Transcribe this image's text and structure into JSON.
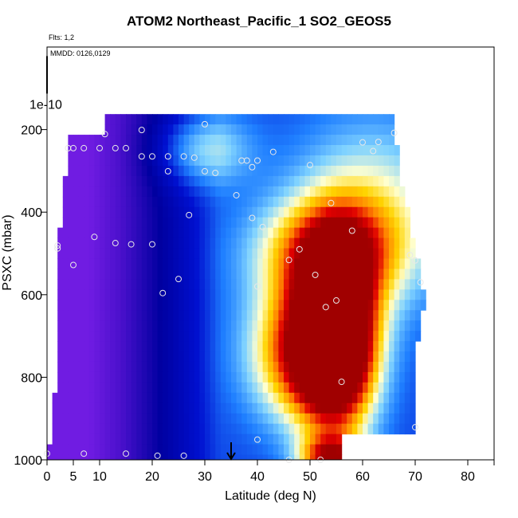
{
  "title": "ATOM2 Northeast_Pacific_1 SO2_GEOS5",
  "flights_text": "Flts: 1,2",
  "mmdd_text": "MMDD: 0126,0129",
  "chart_data": {
    "type": "heatmap",
    "xlabel": "Latitude (deg N)",
    "ylabel": "PSXC (mbar)",
    "xlim": [
      0,
      85
    ],
    "ylim": [
      1000,
      0
    ],
    "xticks": [
      0,
      5,
      10,
      20,
      30,
      40,
      50,
      60,
      70,
      80
    ],
    "xticks_minor": [
      85
    ],
    "yticks": [
      200,
      400,
      600,
      800,
      1000
    ],
    "extra_ytick_label": "1e-10",
    "extra_ytick_value": 22,
    "colormap": [
      "#7a1fe8",
      "#4a10cc",
      "#0000a0",
      "#0010d0",
      "#1f7fff",
      "#7fd2ff",
      "#ffffd0",
      "#ffd400",
      "#ff8000",
      "#e00000",
      "#a00000"
    ],
    "value_range": [
      0,
      1
    ],
    "row_pressures": [
      175,
      200,
      225,
      250,
      275,
      300,
      325,
      350,
      375,
      400,
      425,
      450,
      475,
      500,
      525,
      550,
      575,
      600,
      625,
      650,
      675,
      700,
      725,
      750,
      775,
      800,
      825,
      850,
      875,
      900,
      925,
      950,
      975,
      1000
    ],
    "row_lat_extent": [
      [
        11,
        66
      ],
      [
        11,
        66
      ],
      [
        4,
        66
      ],
      [
        4,
        67
      ],
      [
        4,
        67
      ],
      [
        4,
        67
      ],
      [
        3,
        67
      ],
      [
        3,
        68
      ],
      [
        3,
        68
      ],
      [
        3,
        69
      ],
      [
        3,
        69
      ],
      [
        2,
        69
      ],
      [
        2,
        70
      ],
      [
        2,
        70
      ],
      [
        2,
        71
      ],
      [
        2,
        71
      ],
      [
        2,
        71
      ],
      [
        2,
        72
      ],
      [
        2,
        72
      ],
      [
        2,
        71
      ],
      [
        2,
        71
      ],
      [
        2,
        71
      ],
      [
        2,
        70
      ],
      [
        2,
        70
      ],
      [
        2,
        70
      ],
      [
        2,
        70
      ],
      [
        2,
        70
      ],
      [
        1,
        70
      ],
      [
        1,
        70
      ],
      [
        1,
        70
      ],
      [
        1,
        70
      ],
      [
        1,
        56
      ],
      [
        0,
        56
      ],
      [
        0,
        56
      ]
    ],
    "overlay_points": [
      {
        "lat": 11,
        "p": 211
      },
      {
        "lat": 18,
        "p": 201
      },
      {
        "lat": 30,
        "p": 187
      },
      {
        "lat": 66,
        "p": 208
      },
      {
        "lat": 4,
        "p": 245
      },
      {
        "lat": 5,
        "p": 245
      },
      {
        "lat": 7,
        "p": 245
      },
      {
        "lat": 10,
        "p": 245
      },
      {
        "lat": 13,
        "p": 245
      },
      {
        "lat": 15,
        "p": 245
      },
      {
        "lat": 18,
        "p": 265
      },
      {
        "lat": 20,
        "p": 265
      },
      {
        "lat": 23,
        "p": 265
      },
      {
        "lat": 26,
        "p": 265
      },
      {
        "lat": 28,
        "p": 268
      },
      {
        "lat": 23,
        "p": 301
      },
      {
        "lat": 30,
        "p": 301
      },
      {
        "lat": 32,
        "p": 305
      },
      {
        "lat": 37,
        "p": 275
      },
      {
        "lat": 38,
        "p": 275
      },
      {
        "lat": 40,
        "p": 275
      },
      {
        "lat": 39,
        "p": 291
      },
      {
        "lat": 43,
        "p": 254
      },
      {
        "lat": 50,
        "p": 286
      },
      {
        "lat": 60,
        "p": 231
      },
      {
        "lat": 62,
        "p": 252
      },
      {
        "lat": 63,
        "p": 230
      },
      {
        "lat": 36,
        "p": 359
      },
      {
        "lat": 54,
        "p": 378
      },
      {
        "lat": 27,
        "p": 407
      },
      {
        "lat": 39,
        "p": 414
      },
      {
        "lat": 41,
        "p": 436
      },
      {
        "lat": 58,
        "p": 445
      },
      {
        "lat": 2,
        "p": 481
      },
      {
        "lat": 2,
        "p": 488
      },
      {
        "lat": 9,
        "p": 460
      },
      {
        "lat": 13,
        "p": 475
      },
      {
        "lat": 16,
        "p": 478
      },
      {
        "lat": 20,
        "p": 478
      },
      {
        "lat": 5,
        "p": 528
      },
      {
        "lat": 48,
        "p": 490
      },
      {
        "lat": 46,
        "p": 516
      },
      {
        "lat": 69,
        "p": 504
      },
      {
        "lat": 70,
        "p": 517
      },
      {
        "lat": 25,
        "p": 562
      },
      {
        "lat": 22,
        "p": 596
      },
      {
        "lat": 40,
        "p": 580
      },
      {
        "lat": 51,
        "p": 552
      },
      {
        "lat": 71,
        "p": 570
      },
      {
        "lat": 55,
        "p": 614
      },
      {
        "lat": 53,
        "p": 630
      },
      {
        "lat": 56,
        "p": 811
      },
      {
        "lat": 70,
        "p": 921
      },
      {
        "lat": 40,
        "p": 951
      },
      {
        "lat": 0,
        "p": 985
      },
      {
        "lat": 7,
        "p": 985
      },
      {
        "lat": 15,
        "p": 985
      },
      {
        "lat": 21,
        "p": 990
      },
      {
        "lat": 26,
        "p": 990
      },
      {
        "lat": 46,
        "p": 1003
      },
      {
        "lat": 52,
        "p": 1003
      }
    ],
    "arrow_lat": 35
  }
}
